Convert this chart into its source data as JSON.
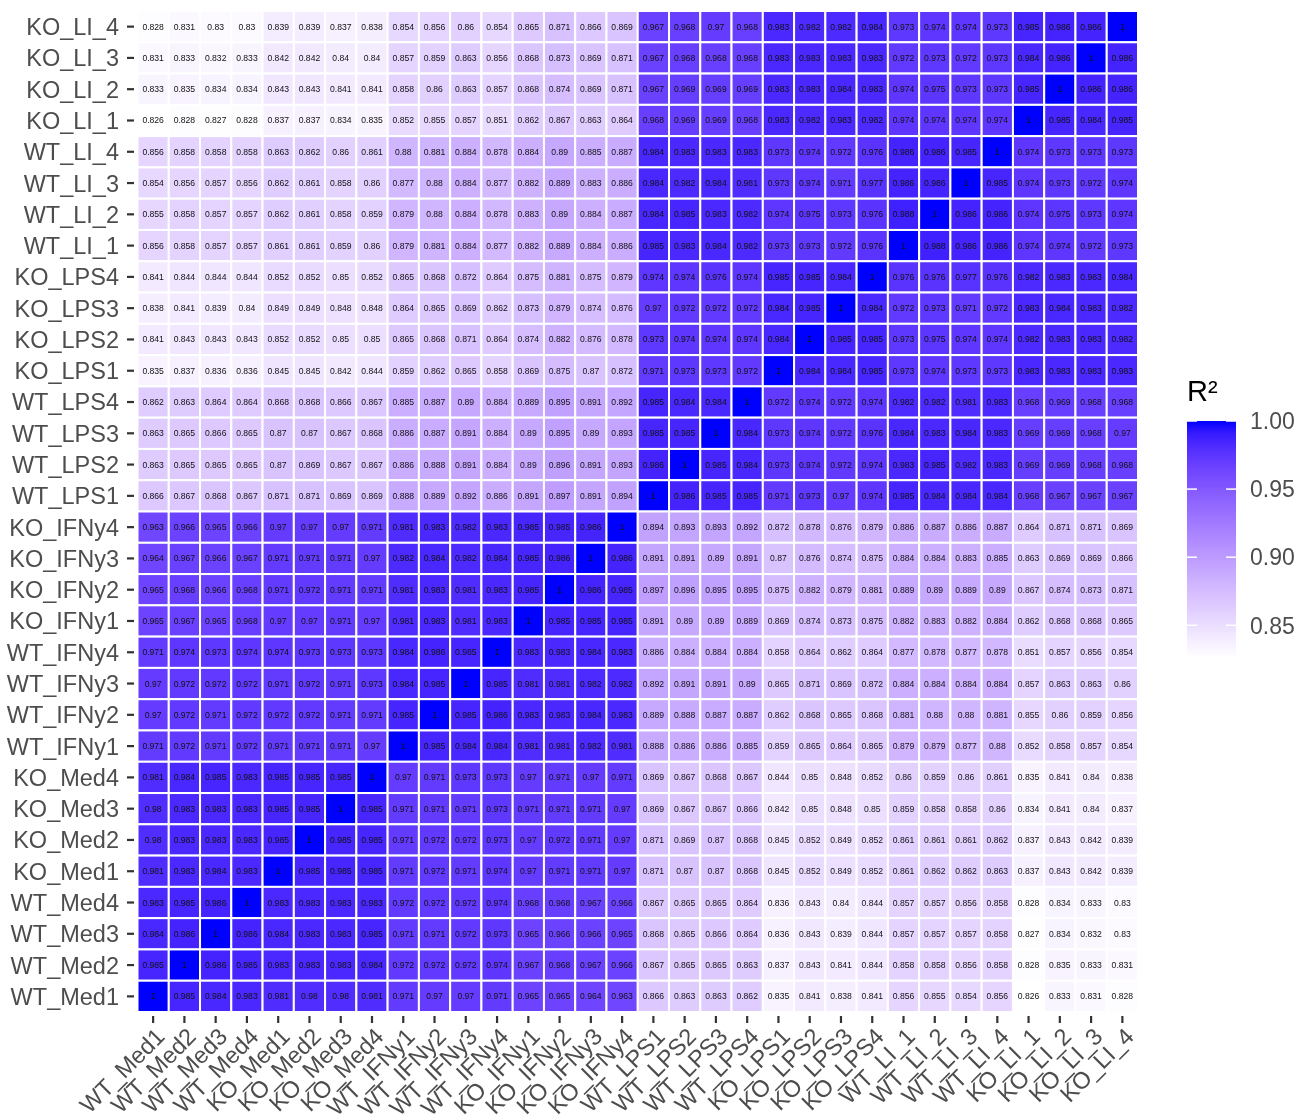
{
  "chart_data": {
    "type": "heatmap",
    "categories": [
      "WT_Med1",
      "WT_Med2",
      "WT_Med3",
      "WT_Med4",
      "KO_Med1",
      "KO_Med2",
      "KO_Med3",
      "KO_Med4",
      "WT_IFNy1",
      "WT_IFNy2",
      "WT_IFNy3",
      "WT_IFNy4",
      "KO_IFNy1",
      "KO_IFNy2",
      "KO_IFNy3",
      "KO_IFNy4",
      "WT_LPS1",
      "WT_LPS2",
      "WT_LPS3",
      "WT_LPS4",
      "KO_LPS1",
      "KO_LPS2",
      "KO_LPS3",
      "KO_LPS4",
      "WT_LI_1",
      "WT_LI_2",
      "WT_LI_3",
      "WT_LI_4",
      "KO_LI_1",
      "KO_LI_2",
      "KO_LI_3",
      "KO_LI_4"
    ],
    "y_categories": [
      "KO_LI_4",
      "KO_LI_3",
      "KO_LI_2",
      "KO_LI_1",
      "WT_LI_4",
      "WT_LI_3",
      "WT_LI_2",
      "WT_LI_1",
      "KO_LPS4",
      "KO_LPS3",
      "KO_LPS2",
      "KO_LPS1",
      "WT_LPS4",
      "WT_LPS3",
      "WT_LPS2",
      "WT_LPS1",
      "KO_IFNy4",
      "KO_IFNy3",
      "KO_IFNy2",
      "KO_IFNy1",
      "WT_IFNy4",
      "WT_IFNy3",
      "WT_IFNy2",
      "WT_IFNy1",
      "KO_Med4",
      "KO_Med3",
      "KO_Med2",
      "KO_Med1",
      "WT_Med4",
      "WT_Med3",
      "WT_Med2",
      "WT_Med1"
    ],
    "cells": [
      [
        0.828,
        0.831,
        0.83,
        0.83,
        0.839,
        0.839,
        0.837,
        0.838,
        0.854,
        0.856,
        0.86,
        0.854,
        0.865,
        0.871,
        0.866,
        0.869,
        0.967,
        0.968,
        0.97,
        0.968,
        0.983,
        0.982,
        0.982,
        0.984,
        0.973,
        0.974,
        0.974,
        0.973,
        0.985,
        0.986,
        0.986,
        1
      ],
      [
        0.831,
        0.833,
        0.832,
        0.833,
        0.842,
        0.842,
        0.84,
        0.84,
        0.857,
        0.859,
        0.863,
        0.856,
        0.868,
        0.873,
        0.869,
        0.871,
        0.967,
        0.968,
        0.968,
        0.968,
        0.983,
        0.983,
        0.983,
        0.983,
        0.972,
        0.973,
        0.972,
        0.973,
        0.984,
        0.986,
        1,
        0.986
      ],
      [
        0.833,
        0.835,
        0.834,
        0.834,
        0.843,
        0.843,
        0.841,
        0.841,
        0.858,
        0.86,
        0.863,
        0.857,
        0.868,
        0.874,
        0.869,
        0.871,
        0.967,
        0.969,
        0.969,
        0.969,
        0.983,
        0.983,
        0.984,
        0.983,
        0.974,
        0.975,
        0.973,
        0.973,
        0.985,
        1,
        0.986,
        0.986
      ],
      [
        0.826,
        0.828,
        0.827,
        0.828,
        0.837,
        0.837,
        0.834,
        0.835,
        0.852,
        0.855,
        0.857,
        0.851,
        0.862,
        0.867,
        0.863,
        0.864,
        0.968,
        0.969,
        0.969,
        0.968,
        0.983,
        0.982,
        0.983,
        0.982,
        0.974,
        0.974,
        0.974,
        0.974,
        1,
        0.985,
        0.984,
        0.985
      ],
      [
        0.856,
        0.858,
        0.858,
        0.858,
        0.863,
        0.862,
        0.86,
        0.861,
        0.88,
        0.881,
        0.884,
        0.878,
        0.884,
        0.89,
        0.885,
        0.887,
        0.984,
        0.983,
        0.983,
        0.983,
        0.973,
        0.974,
        0.972,
        0.976,
        0.986,
        0.986,
        0.985,
        1,
        0.974,
        0.973,
        0.973,
        0.973
      ],
      [
        0.854,
        0.856,
        0.857,
        0.856,
        0.862,
        0.861,
        0.858,
        0.86,
        0.877,
        0.88,
        0.884,
        0.877,
        0.882,
        0.889,
        0.883,
        0.886,
        0.984,
        0.982,
        0.984,
        0.981,
        0.973,
        0.974,
        0.971,
        0.977,
        0.986,
        0.986,
        1,
        0.985,
        0.974,
        0.973,
        0.972,
        0.974
      ],
      [
        0.855,
        0.858,
        0.857,
        0.857,
        0.862,
        0.861,
        0.858,
        0.859,
        0.879,
        0.88,
        0.884,
        0.878,
        0.883,
        0.89,
        0.884,
        0.887,
        0.984,
        0.985,
        0.983,
        0.982,
        0.974,
        0.975,
        0.973,
        0.976,
        0.988,
        1,
        0.986,
        0.986,
        0.974,
        0.975,
        0.973,
        0.974
      ],
      [
        0.856,
        0.858,
        0.857,
        0.857,
        0.861,
        0.861,
        0.859,
        0.86,
        0.879,
        0.881,
        0.884,
        0.877,
        0.882,
        0.889,
        0.884,
        0.886,
        0.985,
        0.983,
        0.984,
        0.982,
        0.973,
        0.973,
        0.972,
        0.976,
        1,
        0.988,
        0.986,
        0.986,
        0.974,
        0.974,
        0.972,
        0.973
      ],
      [
        0.841,
        0.844,
        0.844,
        0.844,
        0.852,
        0.852,
        0.85,
        0.852,
        0.865,
        0.868,
        0.872,
        0.864,
        0.875,
        0.881,
        0.875,
        0.879,
        0.974,
        0.974,
        0.976,
        0.974,
        0.985,
        0.985,
        0.984,
        1,
        0.976,
        0.976,
        0.977,
        0.976,
        0.982,
        0.983,
        0.983,
        0.984
      ],
      [
        0.838,
        0.841,
        0.839,
        0.84,
        0.849,
        0.849,
        0.848,
        0.848,
        0.864,
        0.865,
        0.869,
        0.862,
        0.873,
        0.879,
        0.874,
        0.876,
        0.97,
        0.972,
        0.972,
        0.972,
        0.984,
        0.985,
        1,
        0.984,
        0.972,
        0.973,
        0.971,
        0.972,
        0.983,
        0.984,
        0.983,
        0.982
      ],
      [
        0.841,
        0.843,
        0.843,
        0.843,
        0.852,
        0.852,
        0.85,
        0.85,
        0.865,
        0.868,
        0.871,
        0.864,
        0.874,
        0.882,
        0.876,
        0.878,
        0.973,
        0.974,
        0.974,
        0.974,
        0.984,
        1,
        0.985,
        0.985,
        0.973,
        0.975,
        0.974,
        0.974,
        0.982,
        0.983,
        0.983,
        0.982
      ],
      [
        0.835,
        0.837,
        0.836,
        0.836,
        0.845,
        0.845,
        0.842,
        0.844,
        0.859,
        0.862,
        0.865,
        0.858,
        0.869,
        0.875,
        0.87,
        0.872,
        0.971,
        0.973,
        0.973,
        0.972,
        1,
        0.984,
        0.984,
        0.985,
        0.973,
        0.974,
        0.973,
        0.973,
        0.983,
        0.983,
        0.983,
        0.983
      ],
      [
        0.862,
        0.863,
        0.864,
        0.864,
        0.868,
        0.868,
        0.866,
        0.867,
        0.885,
        0.887,
        0.89,
        0.884,
        0.889,
        0.895,
        0.891,
        0.892,
        0.985,
        0.984,
        0.984,
        1,
        0.972,
        0.974,
        0.972,
        0.974,
        0.982,
        0.982,
        0.981,
        0.983,
        0.968,
        0.969,
        0.968,
        0.968
      ],
      [
        0.863,
        0.865,
        0.866,
        0.865,
        0.87,
        0.87,
        0.867,
        0.868,
        0.886,
        0.887,
        0.891,
        0.884,
        0.89,
        0.895,
        0.89,
        0.893,
        0.985,
        0.985,
        1,
        0.984,
        0.973,
        0.974,
        0.972,
        0.976,
        0.984,
        0.983,
        0.984,
        0.983,
        0.969,
        0.969,
        0.968,
        0.97
      ],
      [
        0.863,
        0.865,
        0.865,
        0.865,
        0.87,
        0.869,
        0.867,
        0.867,
        0.886,
        0.888,
        0.891,
        0.884,
        0.89,
        0.896,
        0.891,
        0.893,
        0.986,
        1,
        0.985,
        0.984,
        0.973,
        0.974,
        0.972,
        0.974,
        0.983,
        0.985,
        0.982,
        0.983,
        0.969,
        0.969,
        0.968,
        0.968
      ],
      [
        0.866,
        0.867,
        0.868,
        0.867,
        0.871,
        0.871,
        0.869,
        0.869,
        0.888,
        0.889,
        0.892,
        0.886,
        0.891,
        0.897,
        0.891,
        0.894,
        1,
        0.986,
        0.985,
        0.985,
        0.971,
        0.973,
        0.97,
        0.974,
        0.985,
        0.984,
        0.984,
        0.984,
        0.968,
        0.967,
        0.967,
        0.967
      ],
      [
        0.963,
        0.966,
        0.965,
        0.966,
        0.97,
        0.97,
        0.97,
        0.971,
        0.981,
        0.983,
        0.982,
        0.983,
        0.985,
        0.985,
        0.986,
        1,
        0.894,
        0.893,
        0.893,
        0.892,
        0.872,
        0.878,
        0.876,
        0.879,
        0.886,
        0.887,
        0.886,
        0.887,
        0.864,
        0.871,
        0.871,
        0.869
      ],
      [
        0.964,
        0.967,
        0.966,
        0.967,
        0.971,
        0.971,
        0.971,
        0.97,
        0.982,
        0.984,
        0.982,
        0.984,
        0.985,
        0.986,
        1,
        0.986,
        0.891,
        0.891,
        0.89,
        0.891,
        0.87,
        0.876,
        0.874,
        0.875,
        0.884,
        0.884,
        0.883,
        0.885,
        0.863,
        0.869,
        0.869,
        0.866
      ],
      [
        0.965,
        0.968,
        0.966,
        0.968,
        0.971,
        0.972,
        0.971,
        0.971,
        0.981,
        0.983,
        0.981,
        0.983,
        0.985,
        1,
        0.986,
        0.985,
        0.897,
        0.896,
        0.895,
        0.895,
        0.875,
        0.882,
        0.879,
        0.881,
        0.889,
        0.89,
        0.889,
        0.89,
        0.867,
        0.874,
        0.873,
        0.871
      ],
      [
        0.965,
        0.967,
        0.965,
        0.968,
        0.97,
        0.97,
        0.971,
        0.97,
        0.981,
        0.983,
        0.981,
        0.983,
        1,
        0.985,
        0.985,
        0.985,
        0.891,
        0.89,
        0.89,
        0.889,
        0.869,
        0.874,
        0.873,
        0.875,
        0.882,
        0.883,
        0.882,
        0.884,
        0.862,
        0.868,
        0.868,
        0.865
      ],
      [
        0.971,
        0.974,
        0.973,
        0.974,
        0.974,
        0.973,
        0.973,
        0.973,
        0.984,
        0.986,
        0.985,
        1,
        0.983,
        0.983,
        0.984,
        0.983,
        0.886,
        0.884,
        0.884,
        0.884,
        0.858,
        0.864,
        0.862,
        0.864,
        0.877,
        0.878,
        0.877,
        0.878,
        0.851,
        0.857,
        0.856,
        0.854
      ],
      [
        0.97,
        0.972,
        0.972,
        0.972,
        0.971,
        0.972,
        0.971,
        0.973,
        0.984,
        0.985,
        1,
        0.985,
        0.981,
        0.981,
        0.982,
        0.982,
        0.892,
        0.891,
        0.891,
        0.89,
        0.865,
        0.871,
        0.869,
        0.872,
        0.884,
        0.884,
        0.884,
        0.884,
        0.857,
        0.863,
        0.863,
        0.86
      ],
      [
        0.97,
        0.972,
        0.971,
        0.972,
        0.972,
        0.972,
        0.971,
        0.971,
        0.985,
        1,
        0.985,
        0.986,
        0.983,
        0.983,
        0.984,
        0.983,
        0.889,
        0.888,
        0.887,
        0.887,
        0.862,
        0.868,
        0.865,
        0.868,
        0.881,
        0.88,
        0.88,
        0.881,
        0.855,
        0.86,
        0.859,
        0.856
      ],
      [
        0.971,
        0.972,
        0.971,
        0.972,
        0.971,
        0.971,
        0.971,
        0.97,
        1,
        0.985,
        0.984,
        0.984,
        0.981,
        0.981,
        0.982,
        0.981,
        0.888,
        0.886,
        0.886,
        0.885,
        0.859,
        0.865,
        0.864,
        0.865,
        0.879,
        0.879,
        0.877,
        0.88,
        0.852,
        0.858,
        0.857,
        0.854
      ],
      [
        0.981,
        0.984,
        0.985,
        0.983,
        0.985,
        0.985,
        0.985,
        1,
        0.97,
        0.971,
        0.973,
        0.973,
        0.97,
        0.971,
        0.97,
        0.971,
        0.869,
        0.867,
        0.868,
        0.867,
        0.844,
        0.85,
        0.848,
        0.852,
        0.86,
        0.859,
        0.86,
        0.861,
        0.835,
        0.841,
        0.84,
        0.838
      ],
      [
        0.98,
        0.983,
        0.983,
        0.983,
        0.985,
        0.985,
        1,
        0.985,
        0.971,
        0.971,
        0.971,
        0.973,
        0.971,
        0.971,
        0.971,
        0.97,
        0.869,
        0.867,
        0.867,
        0.866,
        0.842,
        0.85,
        0.848,
        0.85,
        0.859,
        0.858,
        0.858,
        0.86,
        0.834,
        0.841,
        0.84,
        0.837
      ],
      [
        0.98,
        0.983,
        0.983,
        0.983,
        0.985,
        1,
        0.985,
        0.985,
        0.971,
        0.972,
        0.972,
        0.973,
        0.97,
        0.972,
        0.971,
        0.97,
        0.871,
        0.869,
        0.87,
        0.868,
        0.845,
        0.852,
        0.849,
        0.852,
        0.861,
        0.861,
        0.861,
        0.862,
        0.837,
        0.843,
        0.842,
        0.839
      ],
      [
        0.981,
        0.983,
        0.984,
        0.983,
        1,
        0.985,
        0.985,
        0.985,
        0.971,
        0.972,
        0.971,
        0.974,
        0.97,
        0.971,
        0.971,
        0.97,
        0.871,
        0.87,
        0.87,
        0.868,
        0.845,
        0.852,
        0.849,
        0.852,
        0.861,
        0.862,
        0.862,
        0.863,
        0.837,
        0.843,
        0.842,
        0.839
      ],
      [
        0.983,
        0.985,
        0.986,
        1,
        0.983,
        0.983,
        0.983,
        0.983,
        0.972,
        0.972,
        0.972,
        0.974,
        0.968,
        0.968,
        0.967,
        0.966,
        0.867,
        0.865,
        0.865,
        0.864,
        0.836,
        0.843,
        0.84,
        0.844,
        0.857,
        0.857,
        0.856,
        0.858,
        0.828,
        0.834,
        0.833,
        0.83
      ],
      [
        0.984,
        0.986,
        1,
        0.986,
        0.984,
        0.983,
        0.983,
        0.985,
        0.971,
        0.971,
        0.972,
        0.973,
        0.965,
        0.966,
        0.966,
        0.965,
        0.868,
        0.865,
        0.866,
        0.864,
        0.836,
        0.843,
        0.839,
        0.844,
        0.857,
        0.857,
        0.857,
        0.858,
        0.827,
        0.834,
        0.832,
        0.83
      ],
      [
        0.985,
        1,
        0.986,
        0.985,
        0.983,
        0.983,
        0.983,
        0.984,
        0.972,
        0.972,
        0.972,
        0.974,
        0.967,
        0.968,
        0.967,
        0.966,
        0.867,
        0.865,
        0.865,
        0.863,
        0.837,
        0.843,
        0.841,
        0.844,
        0.858,
        0.858,
        0.856,
        0.858,
        0.828,
        0.835,
        0.833,
        0.831
      ],
      [
        1,
        0.985,
        0.984,
        0.983,
        0.981,
        0.98,
        0.98,
        0.981,
        0.971,
        0.97,
        0.97,
        0.971,
        0.965,
        0.965,
        0.964,
        0.963,
        0.866,
        0.863,
        0.863,
        0.862,
        0.835,
        0.841,
        0.838,
        0.841,
        0.856,
        0.855,
        0.854,
        0.856,
        0.826,
        0.833,
        0.831,
        0.828
      ]
    ],
    "data_labels": true,
    "clabel": "R²",
    "clim": [
      0.826,
      1
    ],
    "cticks": [
      {
        "value": 0.85,
        "label": "0.85"
      },
      {
        "value": 0.9,
        "label": "0.90"
      },
      {
        "value": 0.95,
        "label": "0.95"
      },
      {
        "value": 1,
        "label": "1.00"
      }
    ]
  }
}
